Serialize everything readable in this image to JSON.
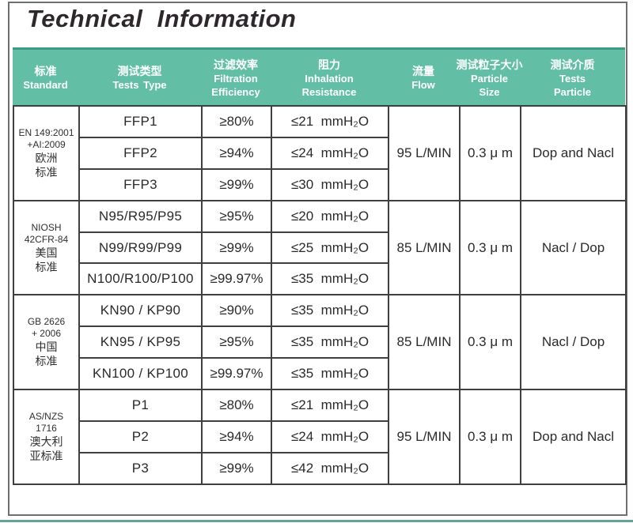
{
  "page": {
    "title": "Technical Information"
  },
  "colors": {
    "header_bg": "#62bfa6",
    "header_top_line": "#3d9a81",
    "grid_border": "#3f3f3f",
    "frame_border": "#6f6f6f",
    "bottom_strip": "#6ba095",
    "title_text": "#2e282c",
    "header_text": "#ffffff"
  },
  "table": {
    "header": {
      "columns": [
        {
          "zh": "标准",
          "en1": "Standard"
        },
        {
          "zh": "测试类型",
          "en1": "Tests  Type"
        },
        {
          "zh": "过滤效率",
          "en1": "Filtration",
          "en2": "Efficiency"
        },
        {
          "zh": "阻力",
          "en1": "Inhalation",
          "en2": "Resistance"
        },
        {
          "zh": "流量",
          "en1": "Flow"
        },
        {
          "zh": "测试粒子大小",
          "en1": "Particle",
          "en2": "Size"
        },
        {
          "zh": "测试介质",
          "en1": "Tests",
          "en2": "Particle"
        }
      ]
    },
    "groups": [
      {
        "standard": {
          "code_lines": [
            "EN 149:2001",
            "+AI:2009"
          ],
          "zh_lines": [
            "欧洲",
            "标准"
          ]
        },
        "rows": [
          {
            "type": "FFP1",
            "efficiency": "≥80%",
            "resistance": "≤21  mmH₂O"
          },
          {
            "type": "FFP2",
            "efficiency": "≥94%",
            "resistance": "≤24  mmH₂O"
          },
          {
            "type": "FFP3",
            "efficiency": "≥99%",
            "resistance": "≤30  mmH₂O"
          }
        ],
        "flow": "95 L/MIN",
        "particle_size": "0.3 μ m",
        "test_particle": "Dop and Nacl"
      },
      {
        "standard": {
          "code_lines": [
            "NIOSH",
            "42CFR-84"
          ],
          "zh_lines": [
            "美国",
            "标准"
          ]
        },
        "rows": [
          {
            "type": "N95/R95/P95",
            "efficiency": "≥95%",
            "resistance": "≤20  mmH₂O"
          },
          {
            "type": "N99/R99/P99",
            "efficiency": "≥99%",
            "resistance": "≤25  mmH₂O"
          },
          {
            "type": "N100/R100/P100",
            "efficiency": "≥99.97%",
            "resistance": "≤35  mmH₂O"
          }
        ],
        "flow": "85 L/MIN",
        "particle_size": "0.3 μ m",
        "test_particle": "Nacl / Dop"
      },
      {
        "standard": {
          "code_lines": [
            "GB 2626",
            "+ 2006"
          ],
          "zh_lines": [
            "中国",
            "标准"
          ]
        },
        "rows": [
          {
            "type": "KN90 / KP90",
            "efficiency": "≥90%",
            "resistance": "≤35  mmH₂O"
          },
          {
            "type": "KN95 / KP95",
            "efficiency": "≥95%",
            "resistance": "≤35  mmH₂O"
          },
          {
            "type": "KN100 / KP100",
            "efficiency": "≥99.97%",
            "resistance": "≤35  mmH₂O"
          }
        ],
        "flow": "85 L/MIN",
        "particle_size": "0.3 μ m",
        "test_particle": "Nacl / Dop"
      },
      {
        "standard": {
          "code_lines": [
            "AS/NZS",
            "1716"
          ],
          "zh_lines": [
            "澳大利",
            "亚标准"
          ]
        },
        "rows": [
          {
            "type": "P1",
            "efficiency": "≥80%",
            "resistance": "≤21  mmH₂O"
          },
          {
            "type": "P2",
            "efficiency": "≥94%",
            "resistance": "≤24  mmH₂O"
          },
          {
            "type": "P3",
            "efficiency": "≥99%",
            "resistance": "≤42  mmH₂O"
          }
        ],
        "flow": "95 L/MIN",
        "particle_size": "0.3 μ m",
        "test_particle": "Dop and Nacl"
      }
    ]
  }
}
